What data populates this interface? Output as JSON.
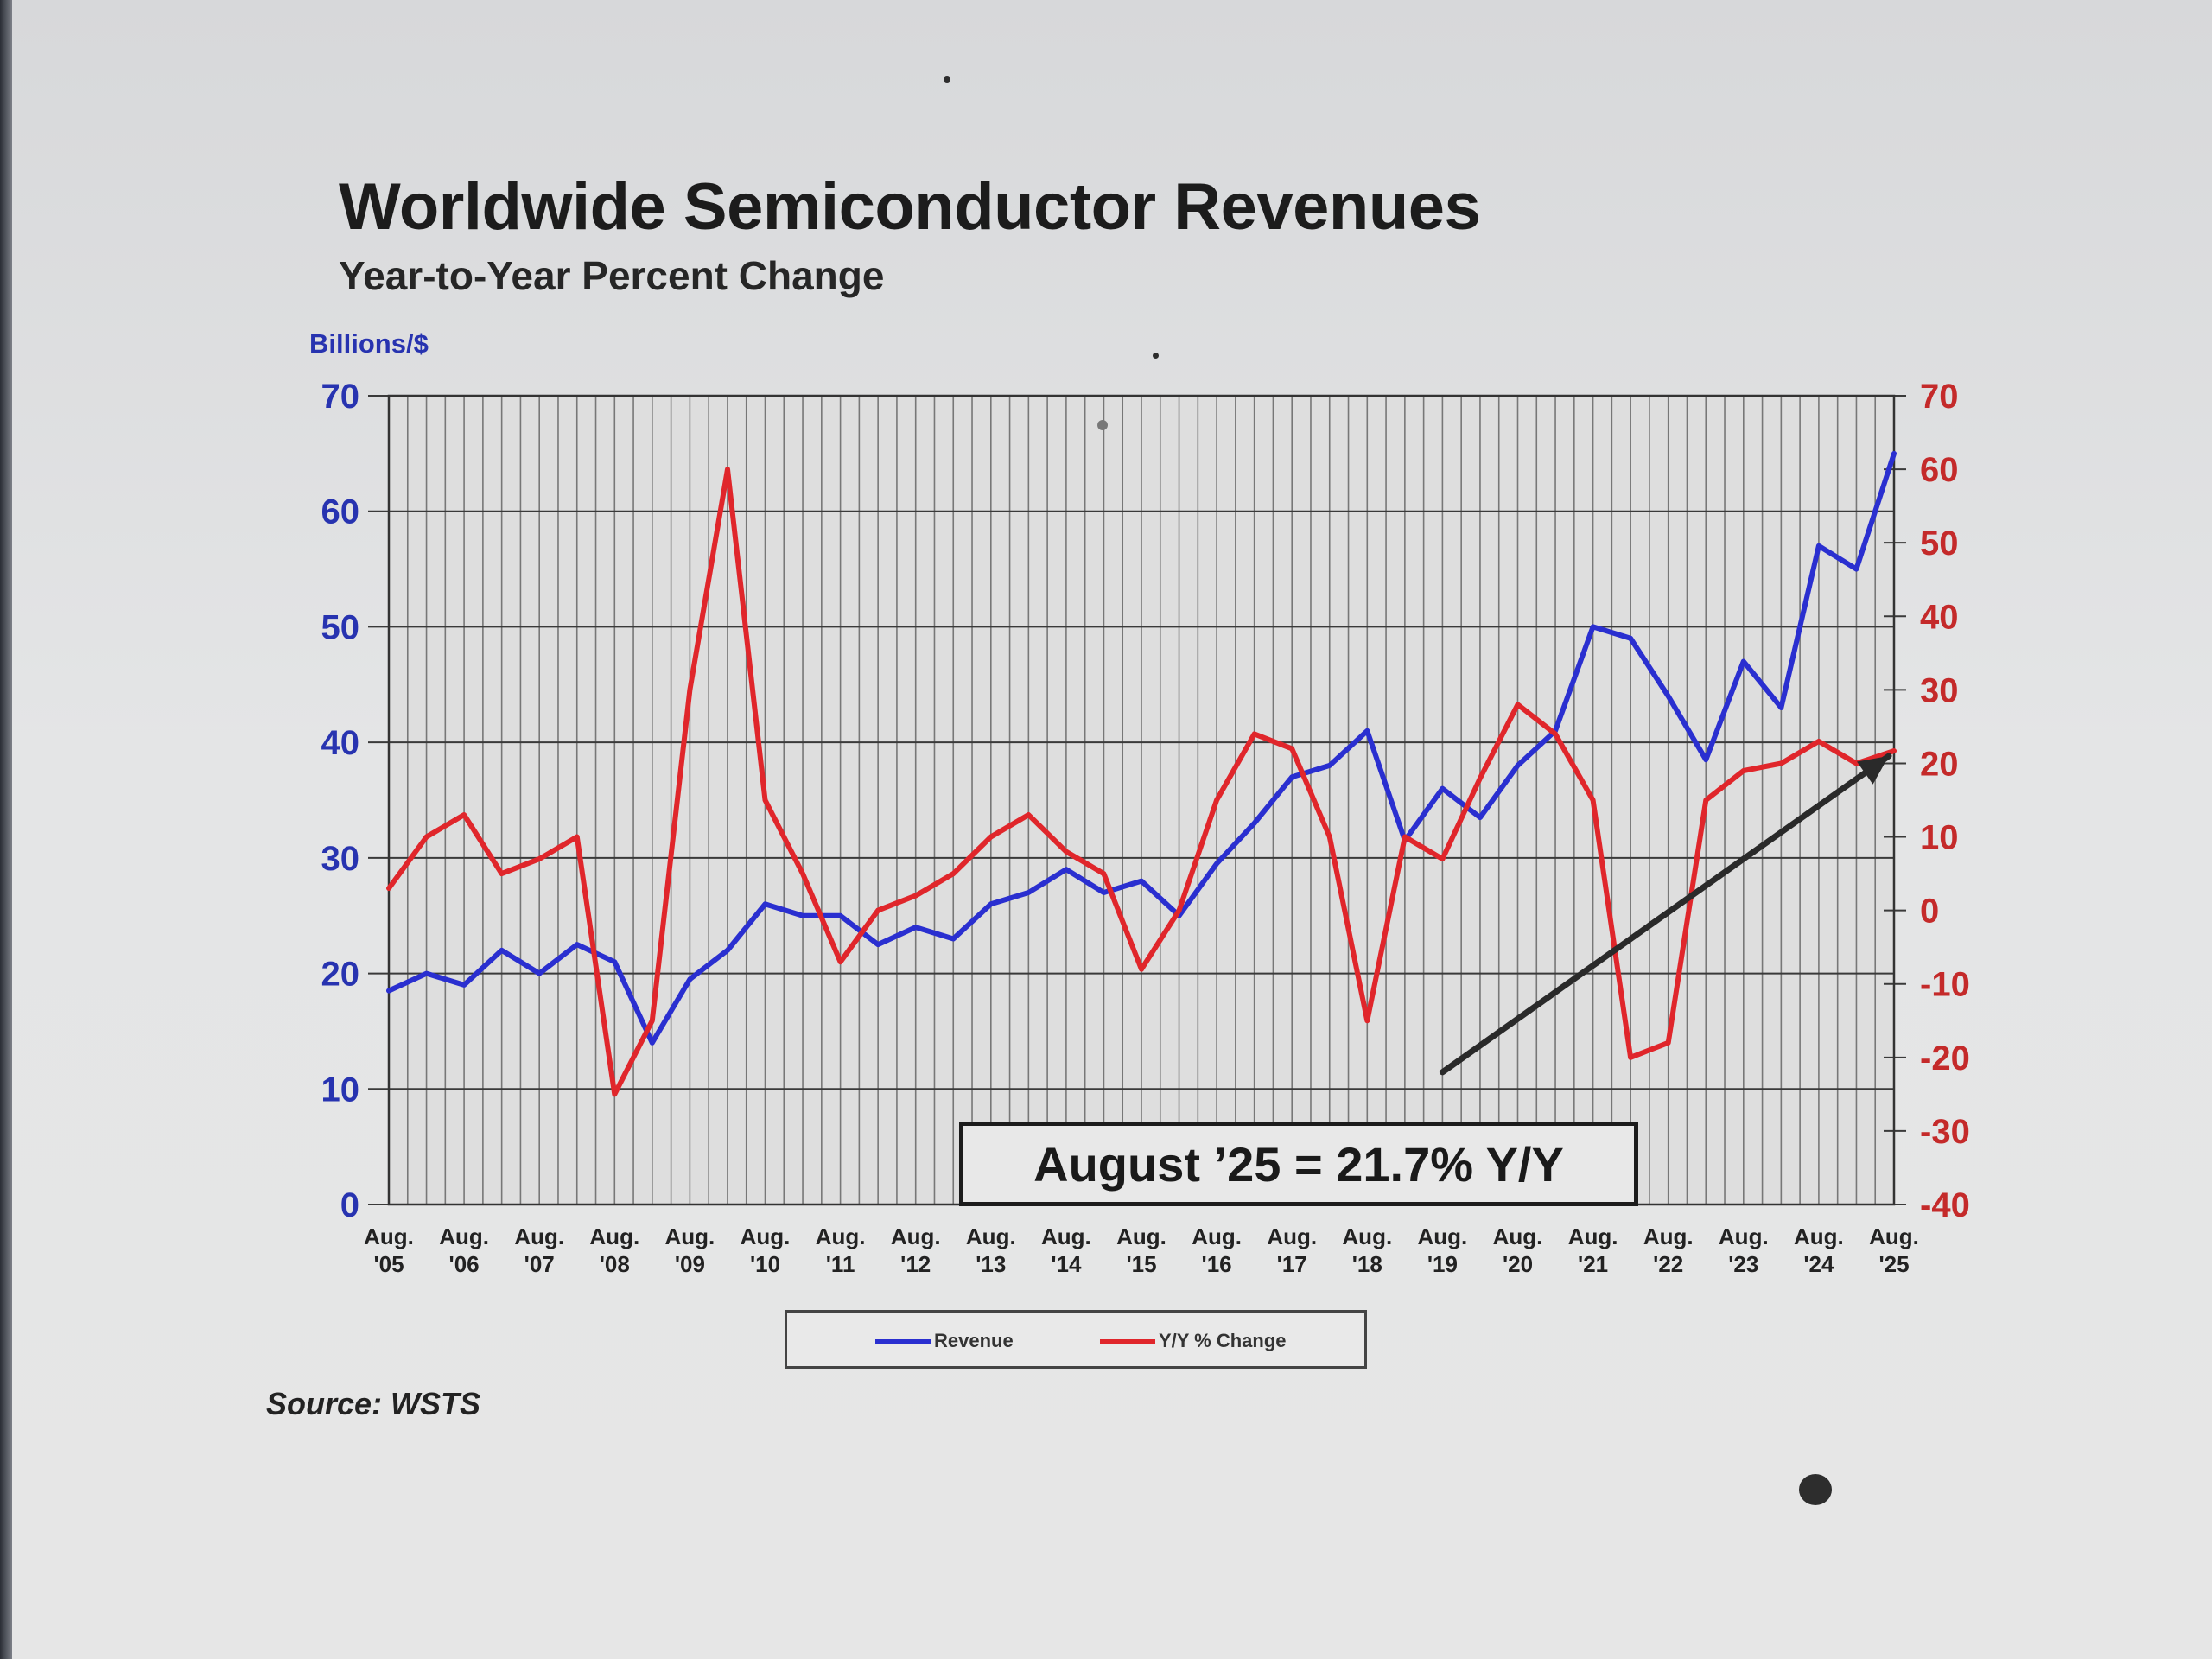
{
  "title": "Worldwide Semiconductor Revenues",
  "subtitle": "Year-to-Year Percent Change",
  "left_unit": "Billions/$",
  "source": "Source: WSTS",
  "callout": "August ’25 = 21.7% Y/Y",
  "colors": {
    "revenue": "#2a2fd0",
    "yoy": "#e0262b",
    "left_axis_text": "#2733b0",
    "right_axis_text": "#c42a2a",
    "grid": "#555555",
    "trend_arrow": "#2a2a2a"
  },
  "chart_data": {
    "type": "line",
    "title": "Worldwide Semiconductor Revenues",
    "subtitle": "Year-to-Year Percent Change",
    "ylabel": "Billions/$",
    "ylim": [
      0,
      70
    ],
    "y2lim": [
      -40,
      70
    ],
    "yticks": [
      "0",
      "10",
      "20",
      "30",
      "40",
      "50",
      "60",
      "70"
    ],
    "y2ticks": [
      "-40",
      "-30",
      "-20",
      "-10",
      "0",
      "10",
      "20",
      "30",
      "40",
      "50",
      "60",
      "70"
    ],
    "grid": true,
    "legend": "bottom-center",
    "x_labels": [
      [
        "Aug.",
        "'05"
      ],
      [
        "Aug.",
        "'06"
      ],
      [
        "Aug.",
        "'07"
      ],
      [
        "Aug.",
        "'08"
      ],
      [
        "Aug.",
        "'09"
      ],
      [
        "Aug.",
        "'10"
      ],
      [
        "Aug.",
        "'11"
      ],
      [
        "Aug.",
        "'12"
      ],
      [
        "Aug.",
        "'13"
      ],
      [
        "Aug.",
        "'14"
      ],
      [
        "Aug.",
        "'15"
      ],
      [
        "Aug.",
        "'16"
      ],
      [
        "Aug.",
        "'17"
      ],
      [
        "Aug.",
        "'18"
      ],
      [
        "Aug.",
        "'19"
      ],
      [
        "Aug.",
        "'20"
      ],
      [
        "Aug.",
        "'21"
      ],
      [
        "Aug.",
        "'22"
      ],
      [
        "Aug.",
        "'23"
      ],
      [
        "Aug.",
        "'24"
      ],
      [
        "Aug.",
        "'25"
      ]
    ],
    "x_start": "2005-08",
    "x_end": "2025-08",
    "series": [
      {
        "name": "Revenue",
        "axis": "left",
        "x": [
          "2005-08",
          "2006-02",
          "2006-08",
          "2007-02",
          "2007-08",
          "2008-02",
          "2008-08",
          "2009-02",
          "2009-08",
          "2010-02",
          "2010-08",
          "2011-02",
          "2011-08",
          "2012-02",
          "2012-08",
          "2013-02",
          "2013-08",
          "2014-02",
          "2014-08",
          "2015-02",
          "2015-08",
          "2016-02",
          "2016-08",
          "2017-02",
          "2017-08",
          "2018-02",
          "2018-08",
          "2019-02",
          "2019-08",
          "2020-02",
          "2020-08",
          "2021-02",
          "2021-08",
          "2022-02",
          "2022-08",
          "2023-02",
          "2023-08",
          "2024-02",
          "2024-08",
          "2025-02",
          "2025-08"
        ],
        "values": [
          18.5,
          20.0,
          19.0,
          22.0,
          20.0,
          22.5,
          21.0,
          14.0,
          19.5,
          22.0,
          26.0,
          25.0,
          25.0,
          22.5,
          24.0,
          23.0,
          26.0,
          27.0,
          29.0,
          27.0,
          28.0,
          25.0,
          29.5,
          33.0,
          37.0,
          38.0,
          41.0,
          31.5,
          36.0,
          33.5,
          38.0,
          41.0,
          50.0,
          49.0,
          44.0,
          38.5,
          47.0,
          43.0,
          57.0,
          55.0,
          65.0
        ]
      },
      {
        "name": "Y/Y % Change",
        "axis": "right",
        "x": [
          "2005-08",
          "2006-02",
          "2006-08",
          "2007-02",
          "2007-08",
          "2008-02",
          "2008-08",
          "2009-02",
          "2009-08",
          "2010-02",
          "2010-08",
          "2011-02",
          "2011-08",
          "2012-02",
          "2012-08",
          "2013-02",
          "2013-08",
          "2014-02",
          "2014-08",
          "2015-02",
          "2015-08",
          "2016-02",
          "2016-08",
          "2017-02",
          "2017-08",
          "2018-02",
          "2018-08",
          "2019-02",
          "2019-08",
          "2020-02",
          "2020-08",
          "2021-02",
          "2021-08",
          "2022-02",
          "2022-08",
          "2023-02",
          "2023-08",
          "2024-02",
          "2024-08",
          "2025-02",
          "2025-08"
        ],
        "values": [
          3.0,
          10.0,
          13.0,
          5.0,
          7.0,
          10.0,
          -25.0,
          -15.0,
          30.0,
          60.0,
          15.0,
          5.0,
          -7.0,
          0.0,
          2.0,
          5.0,
          10.0,
          13.0,
          8.0,
          5.0,
          -8.0,
          0.0,
          15.0,
          24.0,
          22.0,
          10.0,
          -15.0,
          10.0,
          7.0,
          18.0,
          28.0,
          24.0,
          15.0,
          -20.0,
          -18.0,
          15.0,
          19.0,
          20.0,
          23.0,
          20.0,
          21.7
        ]
      }
    ],
    "annotations": [
      {
        "type": "arrow",
        "from": {
          "x": "2019-08",
          "y2": -22
        },
        "to": {
          "x": "2025-08",
          "y2": 21
        }
      },
      {
        "type": "text",
        "text": "August ’25 = 21.7% Y/Y"
      }
    ]
  }
}
